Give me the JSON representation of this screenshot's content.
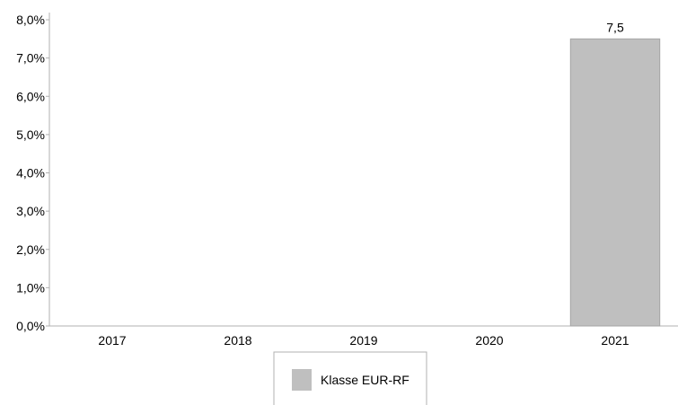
{
  "chart_data": {
    "type": "bar",
    "categories": [
      "2017",
      "2018",
      "2019",
      "2020",
      "2021"
    ],
    "series": [
      {
        "name": "Klasse EUR-RF",
        "values": [
          null,
          null,
          null,
          null,
          7.5
        ],
        "data_labels": [
          "",
          "",
          "",
          "",
          "7,5"
        ],
        "color": "#bfbfbf"
      }
    ],
    "ylim": [
      0,
      8
    ],
    "yticks": [
      0,
      1,
      2,
      3,
      4,
      5,
      6,
      7,
      8
    ],
    "ytick_labels": [
      "0,0%",
      "1,0%",
      "2,0%",
      "3,0%",
      "4,0%",
      "5,0%",
      "6,0%",
      "7,0%",
      "8,0%"
    ],
    "grid": false,
    "legend": "bottom-center",
    "axis_color": "#b0b0b0"
  }
}
